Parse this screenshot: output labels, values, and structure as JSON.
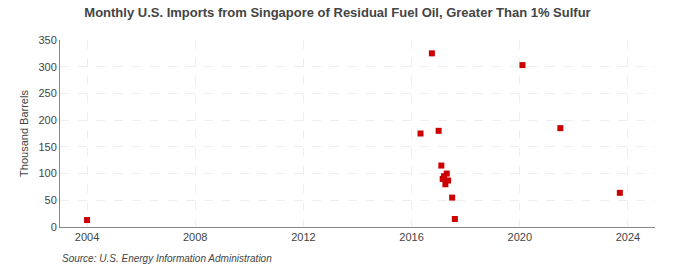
{
  "chart_data": {
    "type": "scatter",
    "title": "Monthly U.S. Imports from Singapore of Residual Fuel Oil, Greater Than 1% Sulfur",
    "ylabel": "Thousand Barrels",
    "annotations": [
      "Source: U.S. Energy Information Administration"
    ],
    "x": [
      2004.0,
      2016.33,
      2016.75,
      2017.0,
      2017.1,
      2017.15,
      2017.2,
      2017.25,
      2017.3,
      2017.35,
      2017.5,
      2017.6,
      2020.1,
      2021.5,
      2023.7
    ],
    "values": [
      13,
      175,
      325,
      180,
      115,
      90,
      95,
      80,
      100,
      87,
      55,
      15,
      303,
      185,
      64
    ],
    "color": "#cc0000",
    "marker": "square",
    "xlim": [
      2003,
      2025
    ],
    "ylim": [
      0,
      350
    ],
    "xticks": [
      2004,
      2008,
      2012,
      2016,
      2020,
      2024
    ],
    "yticks": [
      0,
      50,
      100,
      150,
      200,
      250,
      300,
      350
    ],
    "grid": true
  }
}
